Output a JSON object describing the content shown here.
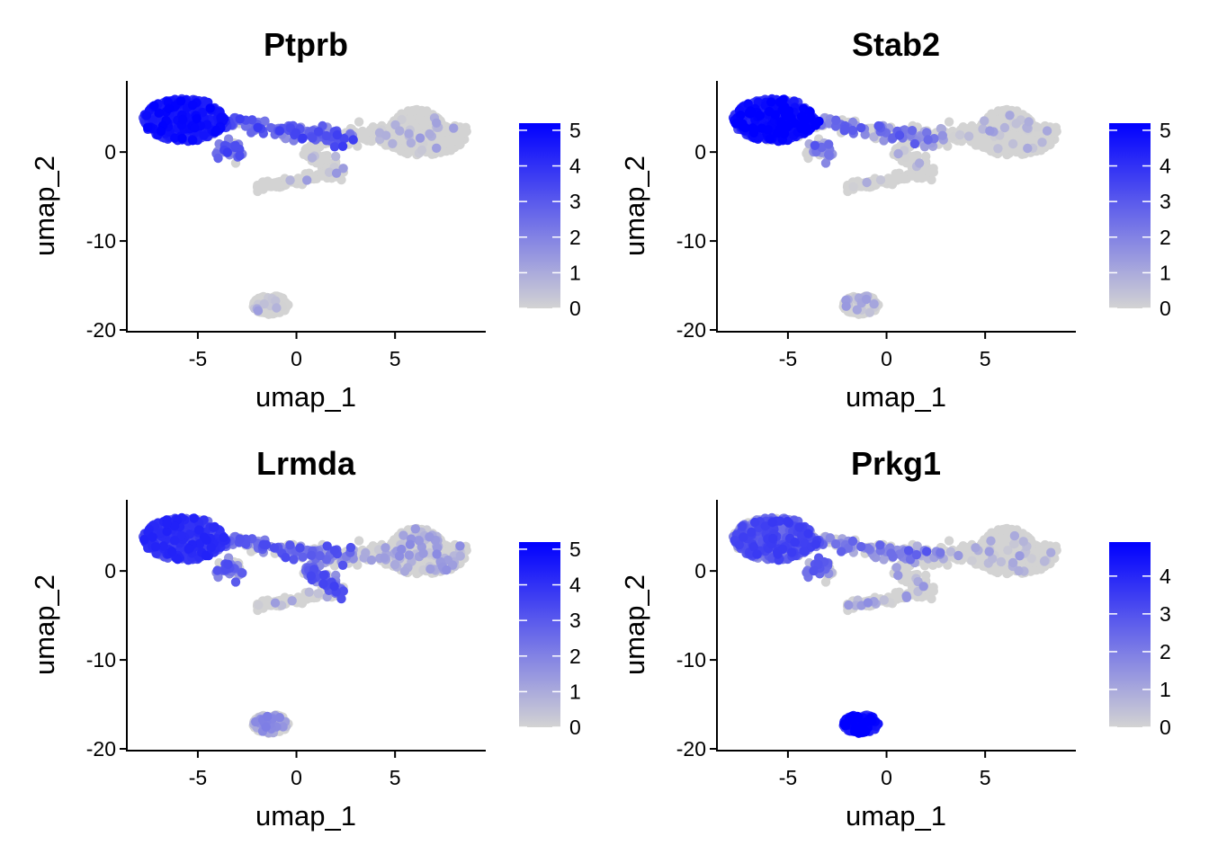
{
  "figure": {
    "colors": {
      "low": "#d3d3d3",
      "high": "#0000ff",
      "axis": "#000000"
    }
  },
  "chart_data": [
    {
      "type": "scatter",
      "title": "Ptprb",
      "xlabel": "umap_1",
      "ylabel": "umap_2",
      "xlim": [
        -8.6,
        9.6
      ],
      "ylim": [
        -20.2,
        8.0
      ],
      "xticks": [
        -5,
        0,
        5
      ],
      "yticks": [
        -20,
        -10,
        0
      ],
      "color_scale": {
        "low": "#d3d3d3",
        "high": "#0000ff",
        "min": 0,
        "max": 5.2,
        "ticks": [
          0,
          1,
          2,
          3,
          4,
          5
        ]
      },
      "legend": "right",
      "expression_level": {
        "big": 4.0,
        "bridge": 2.6,
        "mid": 0.3,
        "spur": 0.2,
        "right": 0.3,
        "bottom": 0.3
      }
    },
    {
      "type": "scatter",
      "title": "Stab2",
      "xlabel": "umap_1",
      "ylabel": "umap_2",
      "xlim": [
        -8.6,
        9.6
      ],
      "ylim": [
        -20.2,
        8.0
      ],
      "xticks": [
        -5,
        0,
        5
      ],
      "yticks": [
        -20,
        -10,
        0
      ],
      "color_scale": {
        "low": "#d3d3d3",
        "high": "#0000ff",
        "min": 0,
        "max": 5.2,
        "ticks": [
          0,
          1,
          2,
          3,
          4,
          5
        ]
      },
      "legend": "right",
      "expression_level": {
        "big": 4.2,
        "bridge": 2.0,
        "mid": 0.2,
        "spur": 0.1,
        "right": 0.2,
        "bottom": 0.3
      }
    },
    {
      "type": "scatter",
      "title": "Lrmda",
      "xlabel": "umap_1",
      "ylabel": "umap_2",
      "xlim": [
        -8.6,
        9.6
      ],
      "ylim": [
        -20.2,
        8.0
      ],
      "xticks": [
        -5,
        0,
        5
      ],
      "yticks": [
        -20,
        -10,
        0
      ],
      "color_scale": {
        "low": "#d3d3d3",
        "high": "#0000ff",
        "min": 0,
        "max": 5.2,
        "ticks": [
          0,
          1,
          2,
          3,
          4,
          5
        ]
      },
      "legend": "right",
      "expression_level": {
        "big": 3.2,
        "bridge": 2.2,
        "mid": 2.5,
        "spur": 0.3,
        "right": 0.6,
        "bottom": 1.0
      }
    },
    {
      "type": "scatter",
      "title": "Prkg1",
      "xlabel": "umap_1",
      "ylabel": "umap_2",
      "xlim": [
        -8.6,
        9.6
      ],
      "ylim": [
        -20.2,
        8.0
      ],
      "xticks": [
        -5,
        0,
        5
      ],
      "yticks": [
        -20,
        -10,
        0
      ],
      "color_scale": {
        "low": "#d3d3d3",
        "high": "#0000ff",
        "min": 0,
        "max": 4.9,
        "ticks": [
          0,
          1,
          2,
          3,
          4
        ]
      },
      "legend": "right",
      "expression_level": {
        "big": 2.4,
        "bridge": 1.8,
        "mid": 0.3,
        "spur": 0.5,
        "right": 0.2,
        "bottom": 3.9
      }
    }
  ]
}
